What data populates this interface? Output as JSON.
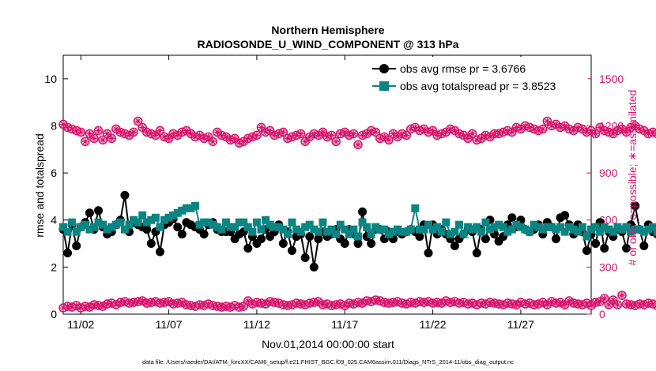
{
  "colors": {
    "rmse": "#000000",
    "spread": "#0b8583",
    "obs": "#d6156b",
    "axis": "#000000"
  },
  "chart_data": {
    "type": "line",
    "title": "Northern Hemisphere",
    "subtitle": "RADIOSONDE_U_WIND_COMPONENT @ 313 hPa",
    "xlabel": "Nov.01,2014 00:00:00 start",
    "ylabel": "rmse and totalspread",
    "y2label": "# of obs: o=possible; ∗=assimilated",
    "footnote": "data file: /Users/raeder/DAI/ATM_forcXX/CAM6_setup/f.e21.FHIST_BGC.f09_025.CAM6assim.011/Diags_NTrS_2014-11/obs_diag_output.nc",
    "xlim": [
      0.5,
      30.5
    ],
    "ylim": [
      0,
      11
    ],
    "y2lim": [
      0,
      1650
    ],
    "xticks": [
      1.5,
      6.5,
      11.5,
      16.5,
      21.5,
      26.5
    ],
    "xtick_labels": [
      "11/02",
      "11/07",
      "11/12",
      "11/17",
      "11/22",
      "11/27"
    ],
    "yticks": [
      0,
      2,
      4,
      6,
      8,
      10
    ],
    "y2ticks": [
      0,
      300,
      600,
      900,
      1200,
      1500
    ],
    "legend": {
      "position": "top-right",
      "entries": [
        "obs avg rmse pr = 3.6766",
        "obs avg totalspread pr = 3.8523"
      ]
    },
    "x_start": 0.5,
    "x_step": 0.25,
    "series": [
      {
        "name": "obs avg rmse",
        "axis": "left",
        "marker": "circle",
        "values": [
          3.6,
          2.6,
          3.8,
          2.9,
          3.7,
          3.9,
          4.3,
          3.6,
          4.4,
          3.7,
          3.4,
          3.5,
          3.8,
          4.0,
          5.05,
          3.5,
          3.9,
          3.8,
          3.7,
          3.6,
          3.0,
          3.5,
          2.65,
          3.8,
          3.9,
          4.05,
          3.7,
          3.4,
          3.9,
          3.8,
          3.7,
          3.6,
          3.4,
          3.8,
          3.9,
          3.6,
          3.5,
          3.5,
          3.5,
          3.2,
          3.4,
          3.5,
          2.8,
          3.3,
          3.0,
          3.2,
          3.6,
          3.3,
          3.5,
          3.8,
          3.0,
          3.5,
          2.7,
          3.3,
          3.4,
          2.4,
          3.3,
          2.0,
          3.2,
          3.5,
          3.3,
          3.4,
          3.6,
          3.2,
          3.0,
          3.6,
          3.4,
          3.0,
          4.35,
          3.3,
          3.0,
          3.6,
          3.6,
          3.2,
          3.5,
          3.2,
          3.5,
          3.4,
          3.5,
          3.6,
          3.5,
          3.3,
          3.8,
          2.6,
          3.8,
          3.4,
          3.6,
          3.4,
          3.2,
          2.9,
          3.2,
          3.4,
          3.6,
          3.5,
          2.6,
          3.6,
          3.2,
          4.0,
          3.4,
          3.1,
          3.3,
          3.8,
          4.1,
          3.7,
          4.0,
          3.6,
          3.5,
          3.6,
          3.8,
          3.4,
          3.9,
          3.7,
          3.2,
          4.1,
          4.2,
          3.8,
          3.4,
          3.8,
          3.5,
          2.7,
          3.4,
          3.0,
          3.9,
          2.8,
          3.5,
          3.3,
          3.6,
          3.5,
          2.8,
          3.8,
          4.6,
          3.6,
          2.9,
          3.8,
          3.5,
          3.4,
          3.5,
          3.3,
          3.6,
          3.5,
          3.3
        ]
      },
      {
        "name": "obs avg totalspread",
        "axis": "left",
        "marker": "square",
        "values": [
          3.7,
          3.5,
          3.9,
          3.5,
          3.7,
          3.8,
          3.6,
          3.7,
          3.9,
          3.8,
          3.6,
          3.7,
          3.8,
          3.9,
          3.6,
          3.8,
          4.0,
          3.9,
          4.2,
          3.9,
          4.0,
          4.1,
          3.7,
          4.0,
          4.1,
          4.2,
          4.3,
          4.4,
          4.5,
          4.5,
          4.6,
          3.8,
          3.9,
          3.9,
          3.8,
          3.7,
          3.6,
          3.9,
          3.7,
          3.7,
          3.9,
          3.9,
          3.7,
          3.5,
          3.9,
          3.6,
          4.0,
          3.8,
          3.7,
          3.7,
          3.6,
          3.4,
          3.9,
          3.6,
          3.5,
          3.7,
          3.8,
          3.6,
          3.5,
          3.9,
          3.5,
          3.6,
          3.4,
          3.8,
          3.6,
          3.4,
          3.6,
          3.3,
          3.9,
          3.7,
          3.4,
          3.7,
          3.6,
          3.6,
          3.4,
          3.5,
          3.6,
          3.5,
          3.5,
          3.6,
          4.5,
          3.6,
          3.6,
          3.8,
          3.6,
          3.7,
          3.5,
          3.9,
          3.4,
          3.5,
          3.8,
          3.4,
          3.7,
          3.6,
          3.7,
          3.5,
          3.9,
          3.6,
          3.7,
          3.8,
          3.7,
          3.5,
          3.6,
          3.8,
          3.7,
          3.6,
          3.5,
          3.8,
          3.7,
          3.6,
          3.7,
          3.7,
          3.6,
          3.7,
          3.5,
          3.7,
          3.6,
          3.5,
          3.7,
          3.3,
          3.6,
          3.7,
          3.5,
          3.7,
          3.6,
          3.5,
          3.7,
          3.6,
          3.7,
          3.5,
          3.6,
          3.6,
          3.5,
          3.6,
          3.7,
          3.5,
          3.5,
          3.6,
          3.5,
          3.6,
          3.5
        ]
      },
      {
        "name": "# obs possible",
        "axis": "right",
        "marker": "circle-open",
        "values_top": [
          1210,
          1190,
          1180,
          1170,
          1160,
          1100,
          1150,
          1120,
          1170,
          1110,
          1150,
          1120,
          1180,
          1160,
          1150,
          1140,
          1160,
          1230,
          1190,
          1160,
          1150,
          1140,
          1170,
          1130,
          1120,
          1150,
          1140,
          1160,
          1170,
          1150,
          1130,
          1140,
          1120,
          1130,
          1100,
          1160,
          1140,
          1130,
          1110,
          1120,
          1090,
          1100,
          1120,
          1130,
          1140,
          1190,
          1160,
          1170,
          1140,
          1150,
          1160,
          1120,
          1130,
          1140,
          1150,
          1100,
          1130,
          1150,
          1140,
          1160,
          1130,
          1140,
          1100,
          1150,
          1160,
          1140,
          1150,
          1080,
          1140,
          1150,
          1170,
          1160,
          1120,
          1130,
          1110,
          1150,
          1130,
          1150,
          1140,
          1180,
          1190,
          1170,
          1180,
          1160,
          1170,
          1140,
          1150,
          1160,
          1180,
          1170,
          1150,
          1140,
          1120,
          1150,
          1110,
          1120,
          1140,
          1130,
          1150,
          1150,
          1160,
          1170,
          1160,
          1190,
          1180,
          1200,
          1190,
          1180,
          1170,
          1180,
          1230,
          1200,
          1210,
          1190,
          1200,
          1180,
          1170,
          1190,
          1180,
          1160,
          1170,
          1150,
          1190,
          1170,
          1160,
          1150,
          1170,
          1180,
          1160,
          1190,
          1200,
          1180,
          1170,
          1150,
          1160,
          1150,
          1160,
          1170,
          1180,
          1100,
          1150
        ],
        "values_bottom": [
          40,
          50,
          45,
          55,
          40,
          50,
          45,
          60,
          55,
          50,
          65,
          70,
          60,
          75,
          80,
          70,
          75,
          80,
          85,
          70,
          75,
          80,
          70,
          75,
          80,
          65,
          70,
          75,
          60,
          55,
          50,
          60,
          55,
          65,
          55,
          50,
          45,
          50,
          45,
          55,
          45,
          50,
          85,
          65,
          75,
          70,
          65,
          80,
          75,
          70,
          60,
          55,
          60,
          70,
          65,
          60,
          70,
          75,
          80,
          60,
          65,
          55,
          60,
          65,
          55,
          70,
          65,
          75,
          70,
          85,
          80,
          90,
          85,
          75,
          70,
          75,
          80,
          70,
          65,
          75,
          70,
          80,
          75,
          80,
          70,
          75,
          70,
          85,
          75,
          80,
          70,
          75,
          65,
          70,
          60,
          70,
          65,
          75,
          70,
          65,
          60,
          70,
          65,
          60,
          75,
          65,
          70,
          60,
          65,
          75,
          60,
          80,
          70,
          75,
          60,
          85,
          70,
          65,
          60,
          70,
          55,
          75,
          80,
          100,
          60,
          90,
          60,
          120,
          65,
          60,
          55,
          65,
          60,
          70,
          65,
          55,
          60,
          75,
          60,
          65,
          0
        ]
      }
    ]
  }
}
